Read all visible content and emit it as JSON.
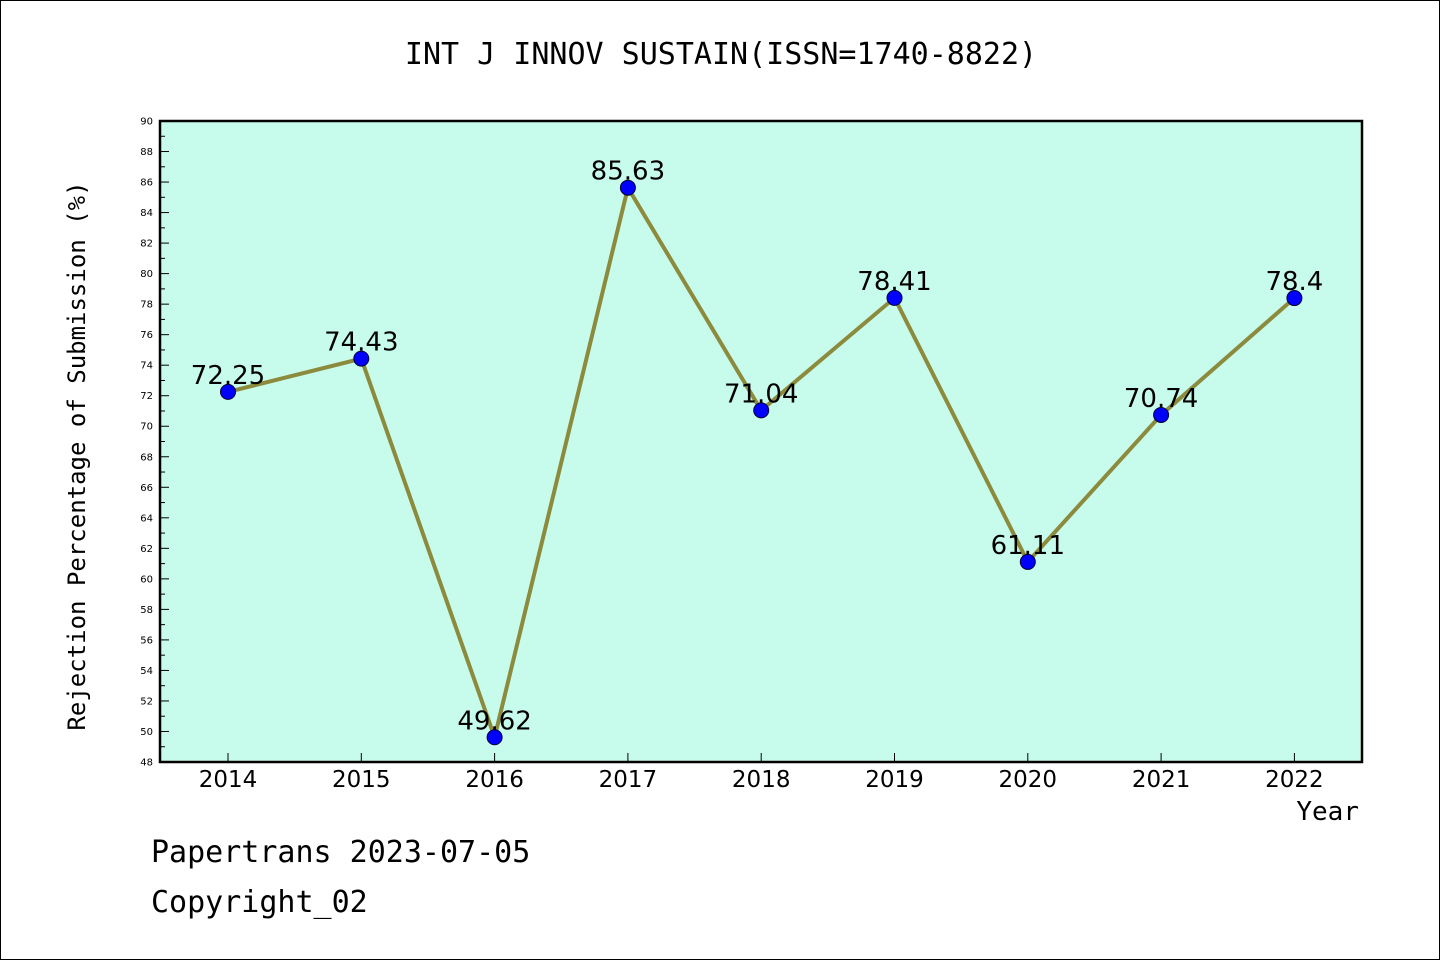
{
  "chart_data": {
    "type": "line",
    "title": "INT J INNOV SUSTAIN(ISSN=1740-8822)",
    "xlabel": "Year",
    "ylabel": "Rejection Percentage of Submission (%)",
    "categories": [
      "2014",
      "2015",
      "2016",
      "2017",
      "2018",
      "2019",
      "2020",
      "2021",
      "2022"
    ],
    "values": [
      72.25,
      74.43,
      49.62,
      85.63,
      71.04,
      78.41,
      61.11,
      70.74,
      78.4
    ],
    "data_labels": [
      "72.25",
      "74.43",
      "49.62",
      "85.63",
      "71.04",
      "78.41",
      "61.11",
      "70.74",
      "78.4"
    ],
    "ylim": [
      48,
      90
    ],
    "yticks": [
      48,
      50,
      52,
      54,
      56,
      58,
      60,
      62,
      64,
      66,
      68,
      70,
      72,
      74,
      76,
      78,
      80,
      82,
      84,
      86,
      88,
      90
    ],
    "grid": false,
    "colors": {
      "plot_background": "#c7fcec",
      "line": "#8c8a3c",
      "marker": "#0000ff",
      "axis": "#000000"
    }
  },
  "footer": {
    "date_text": "Papertrans 2023-07-05",
    "copyright_text": "Copyright_02"
  }
}
